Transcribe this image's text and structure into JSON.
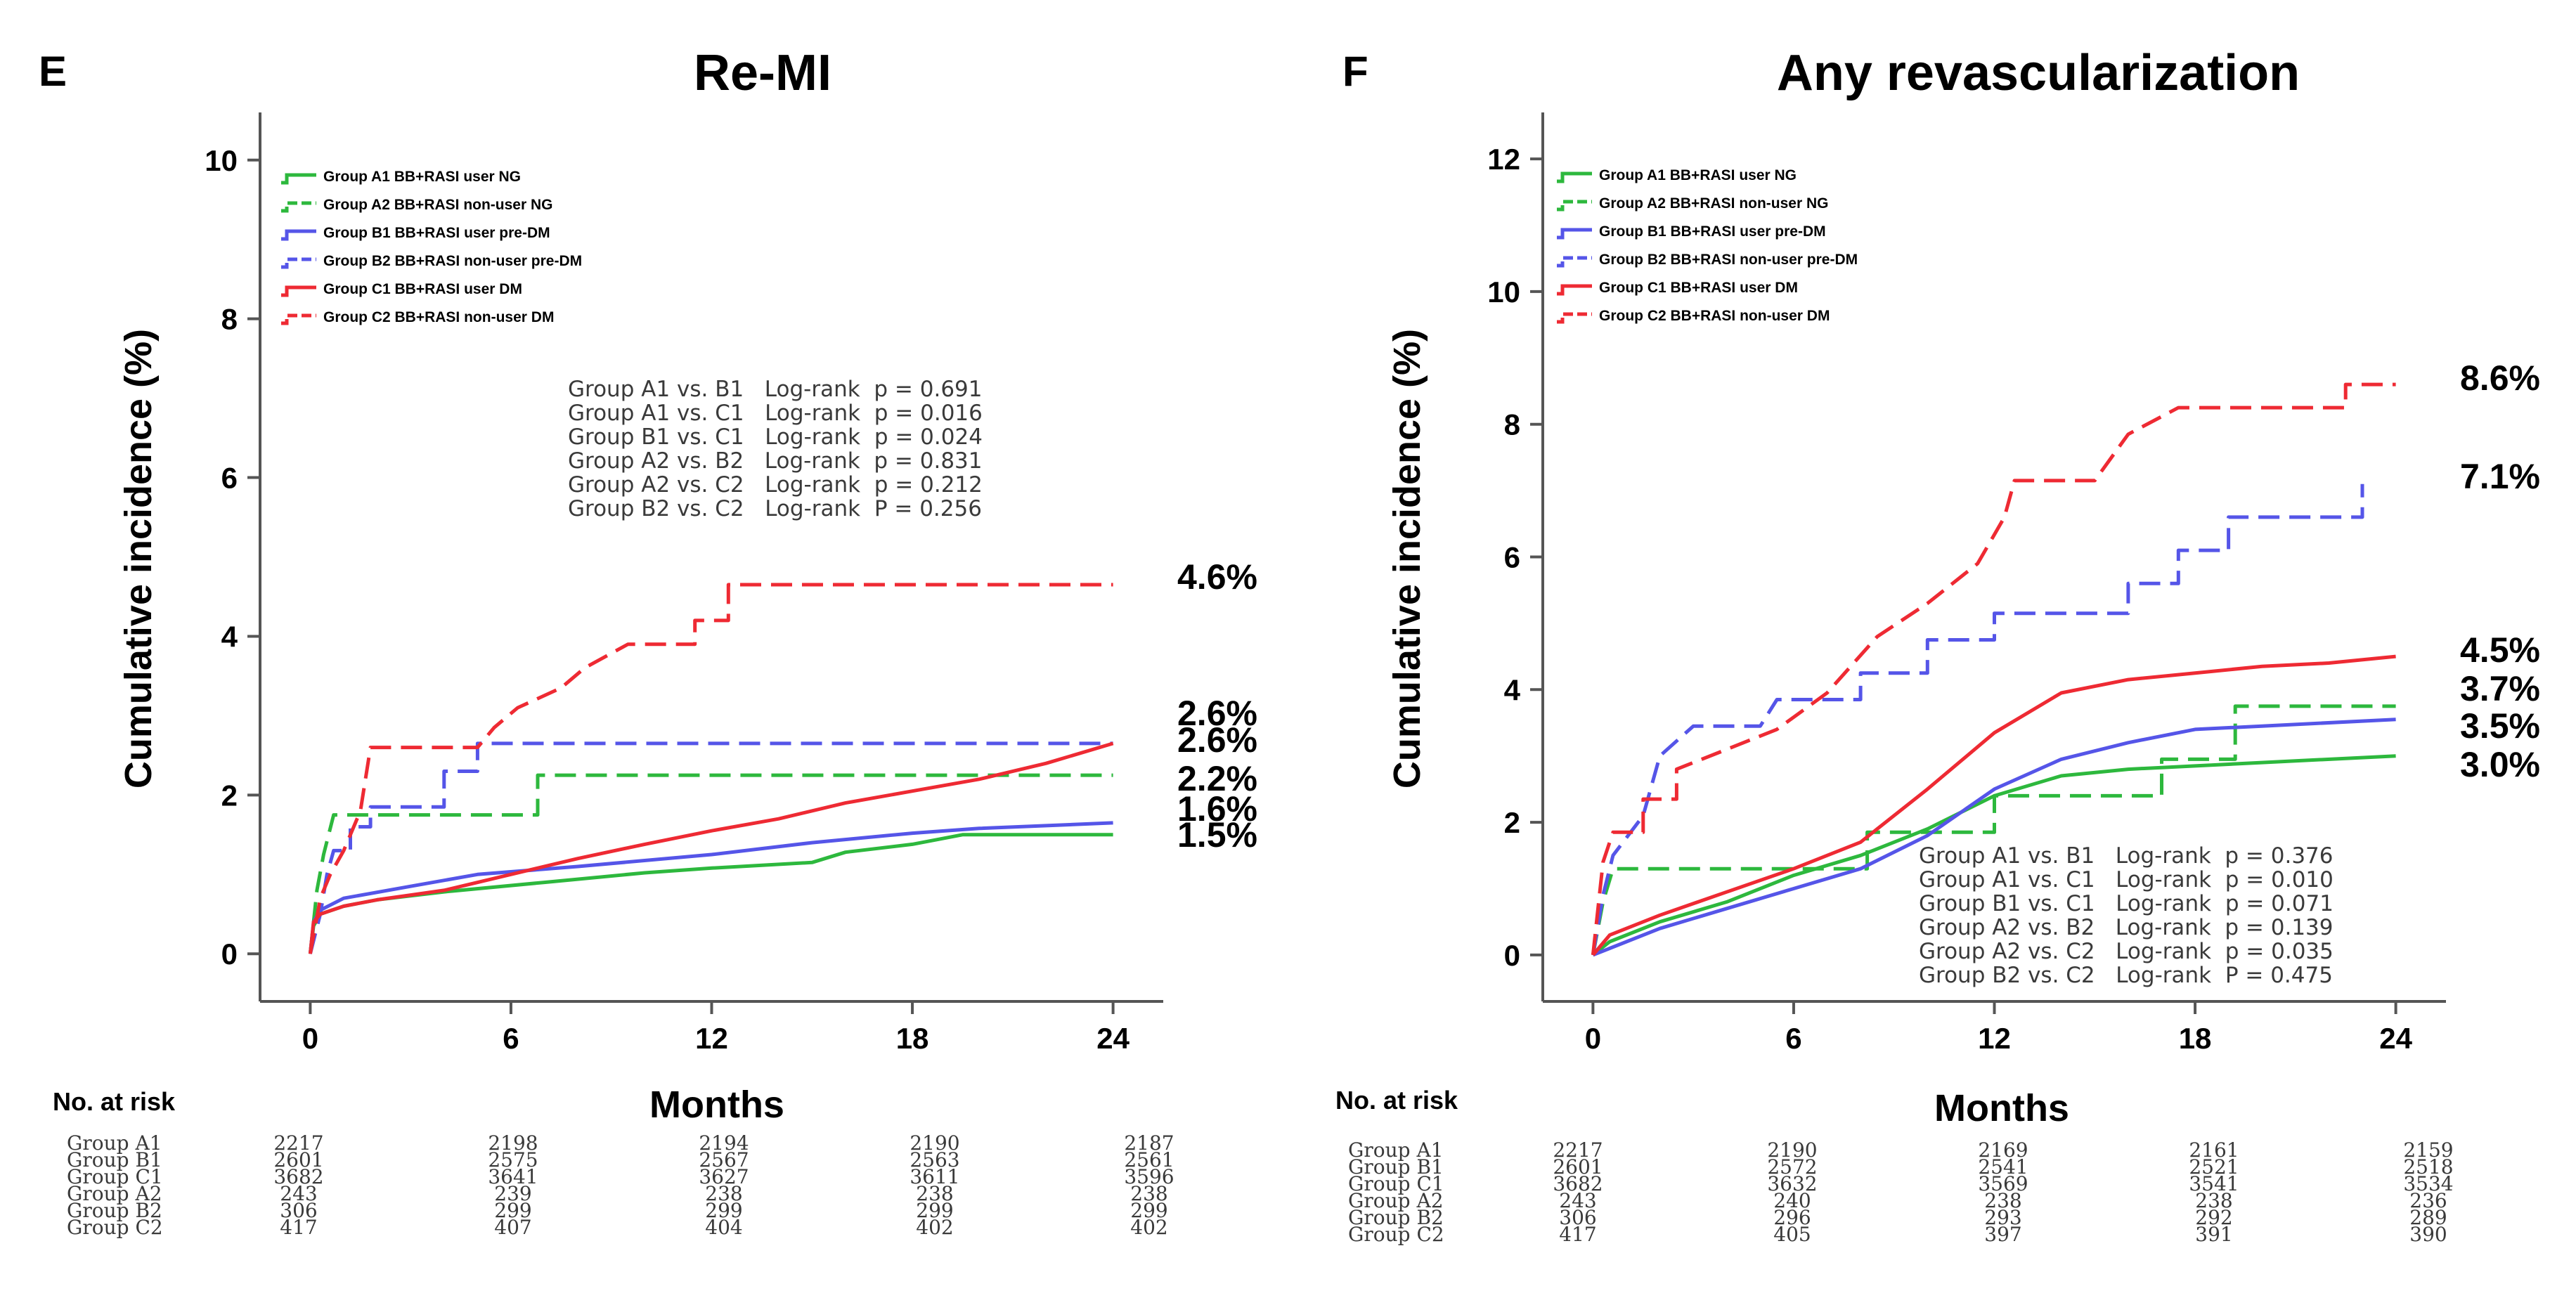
{
  "panels": [
    {
      "letter": "E",
      "x_title": "Months",
      "y_title": "Cumulative incidence (%)",
      "risk_header": "No. at risk",
      "risk_times": [
        0,
        6,
        12,
        18,
        24
      ],
      "stats": [
        "Group A1 vs. B1   Log-rank  p = 0.691",
        "Group A1 vs. C1   Log-rank  p = 0.016",
        "Group B1 vs. C1   Log-rank  p = 0.024",
        "Group A2 vs. B2   Log-rank  p = 0.831",
        "Group A2 vs. C2   Log-rank  p = 0.212",
        "Group B2 vs. C2   Log-rank  P = 0.256"
      ],
      "risk_table": [
        {
          "group": "Group A1",
          "values": [
            "2217",
            "2198",
            "2194",
            "2190",
            "2187"
          ]
        },
        {
          "group": "Group B1",
          "values": [
            "2601",
            "2575",
            "2567",
            "2563",
            "2561"
          ]
        },
        {
          "group": "Group C1",
          "values": [
            "3682",
            "3641",
            "3627",
            "3611",
            "3596"
          ]
        },
        {
          "group": "Group A2",
          "values": [
            "243",
            "239",
            "238",
            "238",
            "238"
          ]
        },
        {
          "group": "Group B2",
          "values": [
            "306",
            "299",
            "299",
            "299",
            "299"
          ]
        },
        {
          "group": "Group C2",
          "values": [
            "417",
            "407",
            "404",
            "402",
            "402"
          ]
        }
      ]
    },
    {
      "letter": "F",
      "x_title": "Months",
      "y_title": "Cumulative incidence (%)",
      "risk_header": "No. at risk",
      "risk_times": [
        0,
        6,
        12,
        18,
        24
      ],
      "stats": [
        "Group A1 vs. B1   Log-rank  p = 0.376",
        "Group A1 vs. C1   Log-rank  p = 0.010",
        "Group B1 vs. C1   Log-rank  p = 0.071",
        "Group A2 vs. B2   Log-rank  p = 0.139",
        "Group A2 vs. C2   Log-rank  p = 0.035",
        "Group B2 vs. C2   Log-rank  P = 0.475"
      ],
      "risk_table": [
        {
          "group": "Group A1",
          "values": [
            "2217",
            "2190",
            "2169",
            "2161",
            "2159"
          ]
        },
        {
          "group": "Group B1",
          "values": [
            "2601",
            "2572",
            "2541",
            "2521",
            "2518"
          ]
        },
        {
          "group": "Group C1",
          "values": [
            "3682",
            "3632",
            "3569",
            "3541",
            "3534"
          ]
        },
        {
          "group": "Group A2",
          "values": [
            "243",
            "240",
            "238",
            "238",
            "236"
          ]
        },
        {
          "group": "Group B2",
          "values": [
            "306",
            "296",
            "293",
            "292",
            "289"
          ]
        },
        {
          "group": "Group C2",
          "values": [
            "417",
            "405",
            "397",
            "391",
            "390"
          ]
        }
      ]
    }
  ],
  "chart_data": [
    {
      "type": "line",
      "subtype": "kaplan-meier step (cumulative incidence)",
      "title": "Re-MI",
      "xlabel": "Months",
      "ylabel": "Cumulative incidence (%)",
      "xlim": [
        -1.5,
        25.5
      ],
      "ylim": [
        -0.6,
        10.6
      ],
      "xticks": [
        0,
        6,
        12,
        18,
        24
      ],
      "yticks": [
        0,
        2,
        4,
        6,
        8,
        10
      ],
      "grid": false,
      "legend": "top-left",
      "series": [
        {
          "name": "Group A1 BB+RASI user NG",
          "color": "#2db83d",
          "dashed": false,
          "end_label": "1.5%",
          "points": [
            [
              0,
              0
            ],
            [
              0.1,
              0.35
            ],
            [
              0.3,
              0.5
            ],
            [
              1,
              0.6
            ],
            [
              2,
              0.68
            ],
            [
              4,
              0.78
            ],
            [
              7,
              0.9
            ],
            [
              10,
              1.02
            ],
            [
              12,
              1.08
            ],
            [
              15,
              1.15
            ],
            [
              16,
              1.28
            ],
            [
              18,
              1.38
            ],
            [
              19.5,
              1.5
            ],
            [
              24,
              1.5
            ]
          ]
        },
        {
          "name": "Group A2 BB+RASI non-user NG",
          "color": "#2db83d",
          "dashed": true,
          "end_label": "2.2%",
          "points": [
            [
              0,
              0
            ],
            [
              0.2,
              0.8
            ],
            [
              0.4,
              1.25
            ],
            [
              0.7,
              1.75
            ],
            [
              6.8,
              1.75
            ],
            [
              6.8,
              2.25
            ],
            [
              24,
              2.25
            ]
          ]
        },
        {
          "name": "Group B1 BB+RASI user pre-DM",
          "color": "#5555e8",
          "dashed": false,
          "end_label": "1.6%",
          "points": [
            [
              0,
              0
            ],
            [
              0.1,
              0.4
            ],
            [
              0.3,
              0.55
            ],
            [
              1,
              0.7
            ],
            [
              3,
              0.85
            ],
            [
              5,
              1.0
            ],
            [
              8,
              1.1
            ],
            [
              12,
              1.25
            ],
            [
              15,
              1.4
            ],
            [
              18,
              1.52
            ],
            [
              20,
              1.58
            ],
            [
              24,
              1.65
            ]
          ]
        },
        {
          "name": "Group B2 BB+RASI non-user pre-DM",
          "color": "#5555e8",
          "dashed": true,
          "end_label": "2.6%",
          "points": [
            [
              0,
              0
            ],
            [
              0.3,
              0.5
            ],
            [
              0.5,
              1.0
            ],
            [
              0.7,
              1.3
            ],
            [
              1.2,
              1.3
            ],
            [
              1.2,
              1.6
            ],
            [
              1.8,
              1.6
            ],
            [
              1.8,
              1.85
            ],
            [
              4,
              1.85
            ],
            [
              4,
              2.3
            ],
            [
              5,
              2.3
            ],
            [
              5,
              2.65
            ],
            [
              24,
              2.65
            ]
          ]
        },
        {
          "name": "Group C1 BB+RASI user DM",
          "color": "#ee2a33",
          "dashed": false,
          "end_label": "2.6%",
          "points": [
            [
              0,
              0
            ],
            [
              0.1,
              0.4
            ],
            [
              0.3,
              0.5
            ],
            [
              1,
              0.6
            ],
            [
              2,
              0.68
            ],
            [
              4,
              0.8
            ],
            [
              6,
              1.0
            ],
            [
              8,
              1.2
            ],
            [
              10,
              1.38
            ],
            [
              12,
              1.55
            ],
            [
              14,
              1.7
            ],
            [
              16,
              1.9
            ],
            [
              18,
              2.05
            ],
            [
              20,
              2.2
            ],
            [
              22,
              2.4
            ],
            [
              24,
              2.65
            ]
          ]
        },
        {
          "name": "Group C2 BB+RASI non-user DM",
          "color": "#ee2a33",
          "dashed": true,
          "end_label": "4.6%",
          "points": [
            [
              0,
              0
            ],
            [
              0.3,
              0.7
            ],
            [
              0.6,
              1.0
            ],
            [
              1,
              1.3
            ],
            [
              1.5,
              1.8
            ],
            [
              1.8,
              2.6
            ],
            [
              5,
              2.6
            ],
            [
              5.5,
              2.85
            ],
            [
              6.2,
              3.1
            ],
            [
              7.5,
              3.35
            ],
            [
              8.2,
              3.6
            ],
            [
              9.5,
              3.9
            ],
            [
              11.5,
              3.9
            ],
            [
              11.5,
              4.2
            ],
            [
              12.5,
              4.2
            ],
            [
              12.5,
              4.65
            ],
            [
              24,
              4.65
            ]
          ]
        }
      ]
    },
    {
      "type": "line",
      "subtype": "kaplan-meier step (cumulative incidence)",
      "title": "Any revascularization",
      "xlabel": "Months",
      "ylabel": "Cumulative incidence (%)",
      "xlim": [
        -1.5,
        25.5
      ],
      "ylim": [
        -0.7,
        12.7
      ],
      "xticks": [
        0,
        6,
        12,
        18,
        24
      ],
      "yticks": [
        0,
        2,
        4,
        6,
        8,
        10,
        12
      ],
      "grid": false,
      "legend": "top-left",
      "series": [
        {
          "name": "Group A1 BB+RASI user NG",
          "color": "#2db83d",
          "dashed": false,
          "end_label": "3.0%",
          "points": [
            [
              0,
              0
            ],
            [
              0.5,
              0.2
            ],
            [
              2,
              0.5
            ],
            [
              4,
              0.8
            ],
            [
              6,
              1.2
            ],
            [
              8,
              1.5
            ],
            [
              10,
              1.9
            ],
            [
              12,
              2.4
            ],
            [
              14,
              2.7
            ],
            [
              16,
              2.8
            ],
            [
              18,
              2.85
            ],
            [
              20,
              2.9
            ],
            [
              24,
              3.0
            ]
          ]
        },
        {
          "name": "Group A2 BB+RASI non-user NG",
          "color": "#2db83d",
          "dashed": true,
          "end_label": "3.7%",
          "points": [
            [
              0,
              0
            ],
            [
              0.3,
              0.8
            ],
            [
              0.6,
              1.3
            ],
            [
              8.2,
              1.3
            ],
            [
              8.2,
              1.85
            ],
            [
              12,
              1.85
            ],
            [
              12,
              2.4
            ],
            [
              17,
              2.4
            ],
            [
              17,
              2.95
            ],
            [
              19.2,
              2.95
            ],
            [
              19.2,
              3.75
            ],
            [
              24,
              3.75
            ]
          ]
        },
        {
          "name": "Group B1 BB+RASI user pre-DM",
          "color": "#5555e8",
          "dashed": false,
          "end_label": "3.5%",
          "points": [
            [
              0,
              0
            ],
            [
              0.5,
              0.1
            ],
            [
              2,
              0.4
            ],
            [
              4,
              0.7
            ],
            [
              6,
              1.0
            ],
            [
              8,
              1.3
            ],
            [
              10,
              1.8
            ],
            [
              12,
              2.5
            ],
            [
              14,
              2.95
            ],
            [
              16,
              3.2
            ],
            [
              18,
              3.4
            ],
            [
              20,
              3.45
            ],
            [
              24,
              3.55
            ]
          ]
        },
        {
          "name": "Group B2 BB+RASI non-user pre-DM",
          "color": "#5555e8",
          "dashed": true,
          "end_label": "7.1%",
          "points": [
            [
              0,
              0
            ],
            [
              0.3,
              0.9
            ],
            [
              0.6,
              1.5
            ],
            [
              1.5,
              2.1
            ],
            [
              2,
              3.0
            ],
            [
              3,
              3.45
            ],
            [
              5,
              3.45
            ],
            [
              5.5,
              3.85
            ],
            [
              8,
              3.85
            ],
            [
              8,
              4.25
            ],
            [
              10,
              4.25
            ],
            [
              10,
              4.75
            ],
            [
              12,
              4.75
            ],
            [
              12,
              5.15
            ],
            [
              16,
              5.15
            ],
            [
              16,
              5.6
            ],
            [
              17.5,
              5.6
            ],
            [
              17.5,
              6.1
            ],
            [
              19,
              6.1
            ],
            [
              19,
              6.6
            ],
            [
              23,
              6.6
            ],
            [
              23,
              7.1
            ]
          ]
        },
        {
          "name": "Group C1 BB+RASI user DM",
          "color": "#ee2a33",
          "dashed": false,
          "end_label": "4.5%",
          "points": [
            [
              0,
              0
            ],
            [
              0.5,
              0.3
            ],
            [
              2,
              0.6
            ],
            [
              4,
              0.95
            ],
            [
              6,
              1.3
            ],
            [
              8,
              1.7
            ],
            [
              10,
              2.5
            ],
            [
              12,
              3.35
            ],
            [
              14,
              3.95
            ],
            [
              16,
              4.15
            ],
            [
              18,
              4.25
            ],
            [
              20,
              4.35
            ],
            [
              22,
              4.4
            ],
            [
              24,
              4.5
            ]
          ]
        },
        {
          "name": "Group C2 BB+RASI non-user DM",
          "color": "#ee2a33",
          "dashed": true,
          "end_label": "8.6%",
          "points": [
            [
              0,
              0
            ],
            [
              0.3,
              1.4
            ],
            [
              0.6,
              1.85
            ],
            [
              1.5,
              1.85
            ],
            [
              1.5,
              2.35
            ],
            [
              2.5,
              2.35
            ],
            [
              2.5,
              2.8
            ],
            [
              4,
              3.1
            ],
            [
              5.5,
              3.4
            ],
            [
              7,
              3.95
            ],
            [
              8.5,
              4.8
            ],
            [
              10,
              5.3
            ],
            [
              11.5,
              5.9
            ],
            [
              12.3,
              6.6
            ],
            [
              12.6,
              7.15
            ],
            [
              15,
              7.15
            ],
            [
              16,
              7.85
            ],
            [
              17.5,
              8.25
            ],
            [
              22.5,
              8.25
            ],
            [
              22.5,
              8.6
            ],
            [
              24,
              8.6
            ]
          ]
        }
      ]
    }
  ]
}
